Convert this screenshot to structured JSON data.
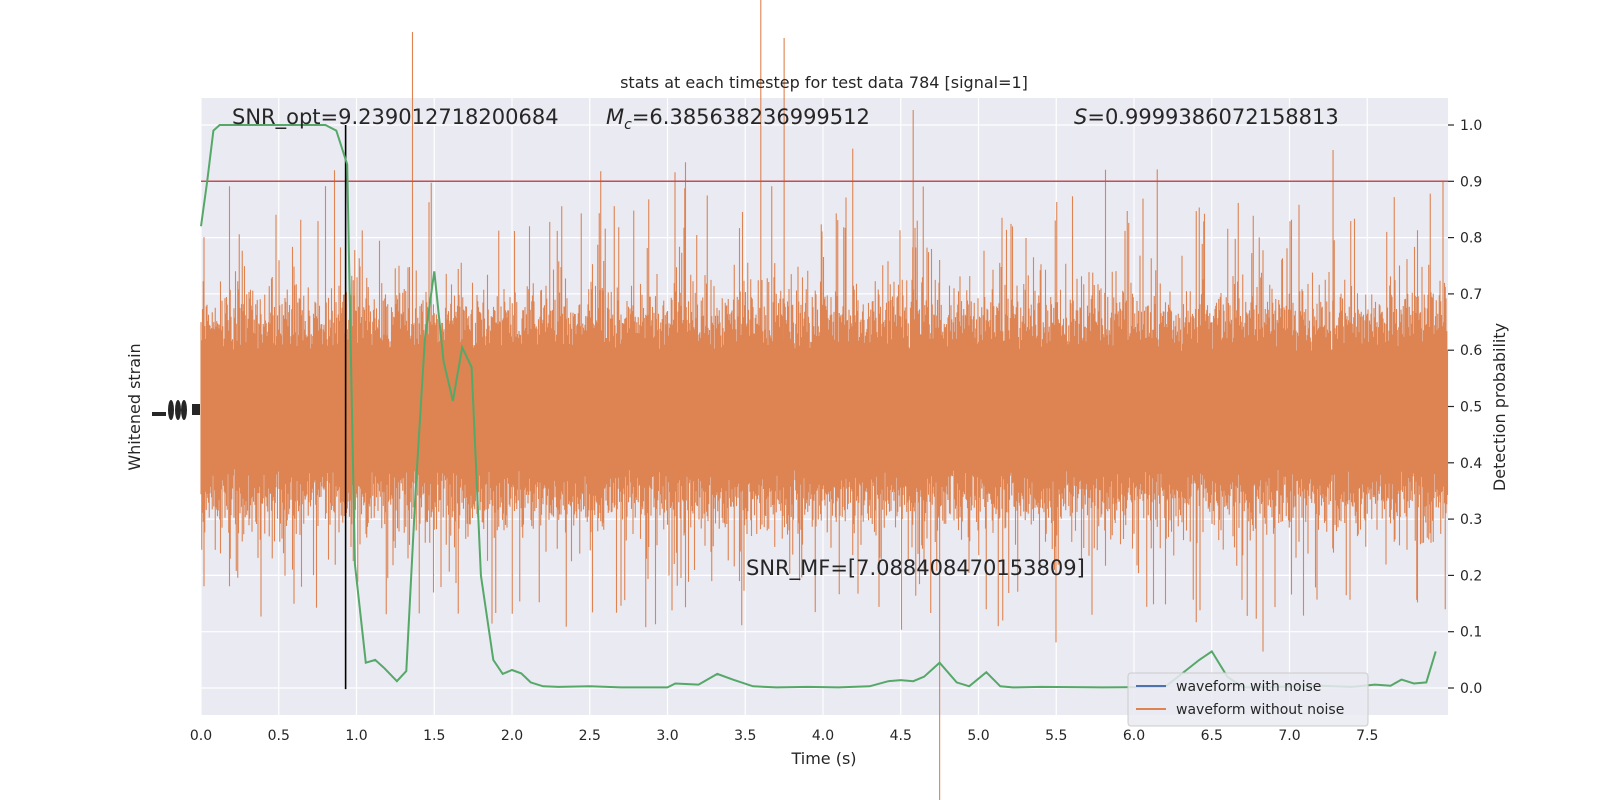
{
  "chart_data": {
    "type": "line",
    "title": "stats at each timestep for test data 784 [signal=1]",
    "xlabel": "Time (s)",
    "ylabel_left": "Whitened strain",
    "ylabel_right": "Detection probability",
    "xlim": [
      0.0,
      8.0
    ],
    "ylim_right": [
      -0.05,
      1.05
    ],
    "x_ticks": [
      "0.0",
      "0.5",
      "1.0",
      "1.5",
      "2.0",
      "2.5",
      "3.0",
      "3.5",
      "4.0",
      "4.5",
      "5.0",
      "5.5",
      "6.0",
      "6.5",
      "7.0",
      "7.5"
    ],
    "y_ticks_right": [
      "0.0",
      "0.1",
      "0.2",
      "0.3",
      "0.4",
      "0.5",
      "0.6",
      "0.7",
      "0.8",
      "0.9",
      "1.0"
    ],
    "grid": true,
    "threshold": 0.9,
    "vline_x": 0.93,
    "annotations": {
      "snr_opt": "SNR_opt=9.239012718200684",
      "mc_prefix": "M",
      "mc_sub": "c",
      "mc_value": "=6.385638236999512",
      "s_prefix": "S",
      "s_value": "=0.9999386072158813",
      "snr_mf": "SNR_MF=[7.088408470153809]"
    },
    "legend": {
      "placement": "lower-right",
      "entries": [
        "waveform with noise",
        "waveform without noise"
      ]
    },
    "series": [
      {
        "name": "Detection probability",
        "color": "#55a868",
        "x": [
          0.0,
          0.04,
          0.08,
          0.12,
          0.2,
          0.3,
          0.4,
          0.5,
          0.6,
          0.7,
          0.8,
          0.87,
          0.94,
          0.99,
          1.06,
          1.12,
          1.18,
          1.26,
          1.32,
          1.38,
          1.44,
          1.5,
          1.56,
          1.62,
          1.68,
          1.74,
          1.8,
          1.88,
          1.94,
          2.0,
          2.06,
          2.12,
          2.2,
          2.3,
          2.5,
          2.7,
          2.9,
          3.0,
          3.05,
          3.2,
          3.32,
          3.42,
          3.55,
          3.7,
          3.9,
          4.1,
          4.3,
          4.42,
          4.5,
          4.58,
          4.65,
          4.75,
          4.86,
          4.94,
          5.05,
          5.14,
          5.22,
          5.4,
          5.8,
          6.2,
          6.42,
          6.5,
          6.6,
          6.7,
          6.9,
          7.2,
          7.4,
          7.55,
          7.65,
          7.72,
          7.8,
          7.88,
          7.94
        ],
        "y": [
          0.82,
          0.9,
          0.99,
          1.0,
          1.0,
          1.0,
          1.0,
          1.0,
          1.0,
          1.0,
          1.0,
          0.99,
          0.93,
          0.22,
          0.045,
          0.05,
          0.035,
          0.012,
          0.03,
          0.35,
          0.62,
          0.74,
          0.58,
          0.51,
          0.605,
          0.57,
          0.2,
          0.05,
          0.025,
          0.032,
          0.026,
          0.01,
          0.003,
          0.002,
          0.003,
          0.001,
          0.001,
          0.001,
          0.008,
          0.006,
          0.025,
          0.015,
          0.003,
          0.001,
          0.002,
          0.001,
          0.003,
          0.012,
          0.014,
          0.012,
          0.02,
          0.045,
          0.01,
          0.003,
          0.028,
          0.003,
          0.001,
          0.002,
          0.001,
          0.002,
          0.05,
          0.065,
          0.02,
          0.001,
          0.002,
          0.004,
          0.002,
          0.006,
          0.004,
          0.015,
          0.008,
          0.01,
          0.065
        ]
      }
    ]
  }
}
